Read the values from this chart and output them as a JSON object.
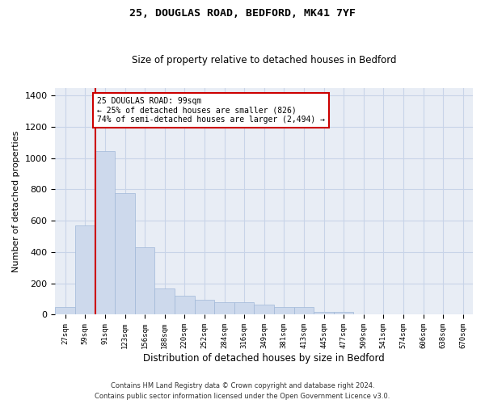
{
  "title1": "25, DOUGLAS ROAD, BEDFORD, MK41 7YF",
  "title2": "Size of property relative to detached houses in Bedford",
  "xlabel": "Distribution of detached houses by size in Bedford",
  "ylabel": "Number of detached properties",
  "annotation_line1": "25 DOUGLAS ROAD: 99sqm",
  "annotation_line2": "← 25% of detached houses are smaller (826)",
  "annotation_line3": "74% of semi-detached houses are larger (2,494) →",
  "footer1": "Contains HM Land Registry data © Crown copyright and database right 2024.",
  "footer2": "Contains public sector information licensed under the Open Government Licence v3.0.",
  "categories": [
    "27sqm",
    "59sqm",
    "91sqm",
    "123sqm",
    "156sqm",
    "188sqm",
    "220sqm",
    "252sqm",
    "284sqm",
    "316sqm",
    "349sqm",
    "381sqm",
    "413sqm",
    "445sqm",
    "477sqm",
    "509sqm",
    "541sqm",
    "574sqm",
    "606sqm",
    "638sqm",
    "670sqm"
  ],
  "values": [
    50,
    570,
    1045,
    775,
    430,
    170,
    120,
    95,
    80,
    80,
    65,
    50,
    50,
    18,
    18,
    5,
    0,
    0,
    0,
    0,
    0
  ],
  "bar_color": "#cdd9ec",
  "bar_edge_color": "#a0b8d8",
  "red_line_index": 2,
  "ylim": [
    0,
    1450
  ],
  "yticks": [
    0,
    200,
    400,
    600,
    800,
    1000,
    1200,
    1400
  ],
  "grid_color": "#c8d4e8",
  "bg_color": "#e8edf5",
  "red_line_color": "#cc0000",
  "annotation_box_color": "#cc0000"
}
